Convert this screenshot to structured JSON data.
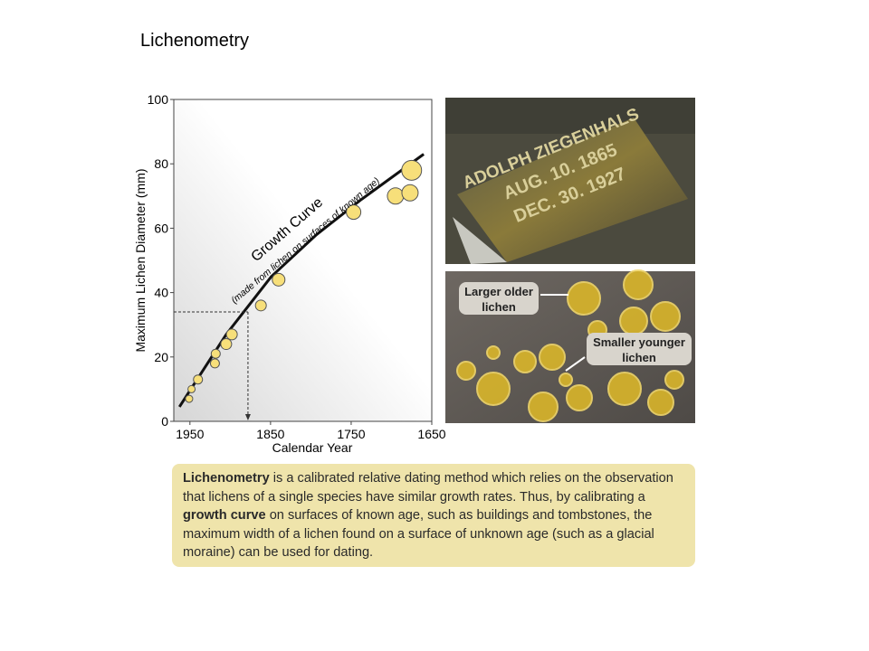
{
  "title": "Lichenometry",
  "chart_data": {
    "type": "scatter",
    "xlabel": "Calendar Year",
    "ylabel": "Maximum Lichen Diameter (mm)",
    "x": [
      1951,
      1948,
      1940,
      1919,
      1918,
      1905,
      1898,
      1862,
      1840,
      1747,
      1695,
      1677,
      1675
    ],
    "values": [
      7,
      10,
      13,
      18,
      21,
      24,
      27,
      36,
      44,
      65,
      70,
      71,
      78
    ],
    "sizes": [
      4,
      4,
      5,
      5,
      5,
      6,
      6,
      6,
      7,
      8,
      9,
      9,
      11
    ],
    "color": "#f7df7a",
    "xlim": [
      1970,
      1650
    ],
    "ylim": [
      0,
      100
    ],
    "xticks": [
      1950,
      1850,
      1750,
      1650
    ],
    "yticks": [
      0,
      20,
      40,
      60,
      80,
      100
    ],
    "curve": {
      "x": [
        1963,
        1905,
        1849,
        1793,
        1737,
        1660
      ],
      "values": [
        4.5,
        27,
        45,
        58,
        69,
        83
      ]
    },
    "reading": {
      "x": 1878,
      "y": 34
    },
    "annotations": [
      "Growth Curve",
      "(made from lichen on surfaces of known age)"
    ]
  },
  "photos": {
    "tombstone": [
      "ADOLPH ZIEGENHALS",
      "AUG. 10. 1865",
      "DEC. 30. 1927"
    ],
    "callouts": [
      "Larger older lichen",
      "Smaller younger lichen"
    ]
  },
  "caption": [
    "Lichenometry",
    " is a calibrated relative dating method which relies on the observation that lichens of a single species have similar growth rates.  Thus, by calibrating a ",
    "growth curve",
    " on surfaces of known age, such as buildings and tombstones, the maximum width of a lichen found on a surface of unknown age (such as a glacial moraine) can be used  for dating."
  ]
}
